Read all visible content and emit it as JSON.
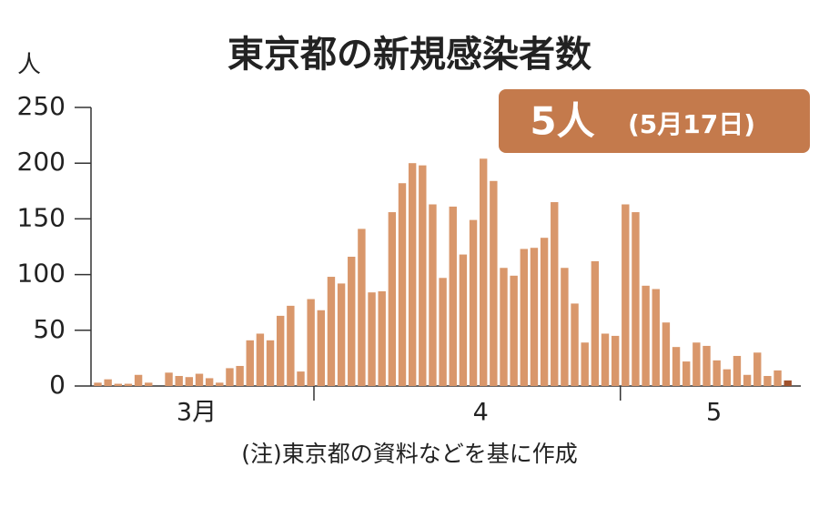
{
  "chart_data": {
    "type": "bar",
    "title": "東京都の新規感染者数",
    "y_unit": "人",
    "annotation": {
      "main": "5人",
      "date": "(5月17日)"
    },
    "note": "(注)東京都の資料などを基に作成",
    "categories": [
      null,
      null,
      null,
      null,
      null,
      null,
      null,
      null,
      null,
      null,
      "3月",
      null,
      null,
      null,
      null,
      null,
      null,
      null,
      null,
      null,
      null,
      null,
      null,
      null,
      null,
      null,
      null,
      null,
      null,
      null,
      null,
      null,
      null,
      null,
      null,
      null,
      null,
      null,
      "4",
      null,
      null,
      null,
      null,
      null,
      null,
      null,
      null,
      null,
      null,
      null,
      null,
      null,
      null,
      null,
      null,
      null,
      null,
      null,
      null,
      null,
      null,
      "5",
      null,
      null,
      null,
      null,
      null,
      null,
      null
    ],
    "values": [
      3,
      6,
      2,
      2,
      10,
      3,
      0,
      12,
      9,
      8,
      11,
      7,
      3,
      16,
      18,
      41,
      47,
      41,
      63,
      72,
      13,
      78,
      68,
      98,
      92,
      116,
      141,
      84,
      85,
      156,
      182,
      200,
      198,
      163,
      97,
      161,
      118,
      149,
      204,
      184,
      106,
      99,
      123,
      124,
      133,
      165,
      106,
      74,
      39,
      112,
      47,
      45,
      163,
      156,
      90,
      87,
      57,
      35,
      22,
      39,
      36,
      23,
      15,
      27,
      10,
      30,
      9,
      14,
      5
    ],
    "color": "#d9976b",
    "highlight": {
      "index": 68,
      "color": "#a0522d"
    },
    "ylim": [
      0,
      250
    ],
    "yticks": [
      0,
      50,
      100,
      150,
      200,
      250
    ],
    "grid": false
  }
}
